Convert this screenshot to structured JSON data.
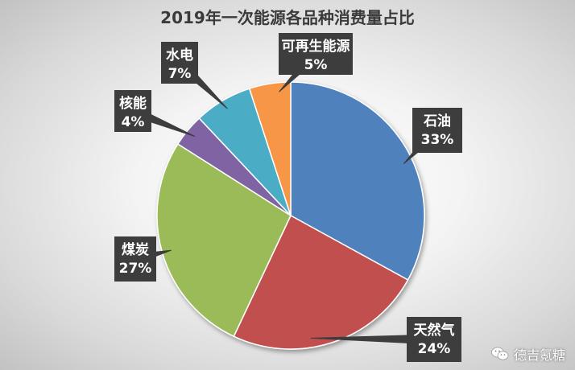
{
  "chart_data": {
    "type": "pie",
    "title": "2019年一次能源各品种消费量占比",
    "slices": [
      {
        "name": "石油",
        "value": 33,
        "label": "33%",
        "color": "#4f81bd"
      },
      {
        "name": "天然气",
        "value": 24,
        "label": "24%",
        "color": "#c0504d"
      },
      {
        "name": "煤炭",
        "value": 27,
        "label": "27%",
        "color": "#9bbb59"
      },
      {
        "name": "核能",
        "value": 4,
        "label": "4%",
        "color": "#8064a2"
      },
      {
        "name": "水电",
        "value": 7,
        "label": "7%",
        "color": "#4bacc6"
      },
      {
        "name": "可再生能源",
        "value": 5,
        "label": "5%",
        "color": "#f79646"
      }
    ],
    "legend": "none",
    "data_labels": "callouts"
  },
  "watermark": {
    "text": "德吉氪糖",
    "icon": "wechat-icon"
  }
}
